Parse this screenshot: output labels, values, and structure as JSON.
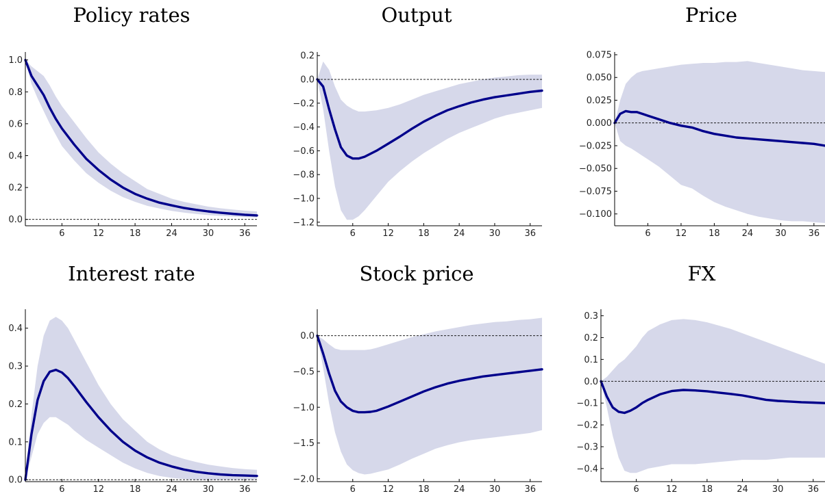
{
  "colors": {
    "line": "#00008b",
    "band": "#d6d8ea"
  },
  "chart_data": [
    {
      "type": "line",
      "title": "Policy rates",
      "xlim": [
        0,
        38
      ],
      "xticks": [
        6,
        12,
        18,
        24,
        30,
        36
      ],
      "xtick_labels": [
        "6",
        "12",
        "18",
        "24",
        "30",
        "36"
      ],
      "ylim": [
        -0.04,
        1.05
      ],
      "yticks": [
        0.0,
        0.2,
        0.4,
        0.6,
        0.8,
        1.0
      ],
      "ytick_labels": [
        "0.0",
        "0.2",
        "0.4",
        "0.6",
        "0.8",
        "1.0"
      ],
      "x": [
        0,
        1,
        2,
        3,
        4,
        5,
        6,
        8,
        10,
        12,
        14,
        16,
        18,
        20,
        22,
        24,
        26,
        28,
        30,
        32,
        34,
        36,
        38
      ],
      "series": [
        {
          "values": [
            1.0,
            0.9,
            0.84,
            0.78,
            0.7,
            0.63,
            0.57,
            0.47,
            0.38,
            0.31,
            0.25,
            0.2,
            0.16,
            0.13,
            0.105,
            0.088,
            0.072,
            0.06,
            0.05,
            0.042,
            0.035,
            0.029,
            0.025
          ]
        }
      ],
      "band_upper": [
        1.0,
        0.96,
        0.93,
        0.9,
        0.84,
        0.77,
        0.71,
        0.61,
        0.51,
        0.42,
        0.35,
        0.29,
        0.24,
        0.19,
        0.16,
        0.13,
        0.11,
        0.095,
        0.08,
        0.07,
        0.062,
        0.055,
        0.05
      ],
      "band_lower": [
        1.0,
        0.85,
        0.76,
        0.68,
        0.6,
        0.53,
        0.46,
        0.37,
        0.29,
        0.23,
        0.18,
        0.14,
        0.11,
        0.085,
        0.068,
        0.053,
        0.043,
        0.034,
        0.027,
        0.022,
        0.018,
        0.014,
        0.012
      ]
    },
    {
      "type": "line",
      "title": "Output",
      "xlim": [
        0,
        38
      ],
      "xticks": [
        6,
        12,
        18,
        24,
        30,
        36
      ],
      "xtick_labels": [
        "6",
        "12",
        "18",
        "24",
        "30",
        "36"
      ],
      "ylim": [
        -1.23,
        0.23
      ],
      "yticks": [
        0.2,
        0.0,
        -0.2,
        -0.4,
        -0.6,
        -0.8,
        -1.0,
        -1.2
      ],
      "ytick_labels": [
        "0.2",
        "0.0",
        "−0.2",
        "−0.4",
        "−0.6",
        "−0.8",
        "−1.0",
        "−1.2"
      ],
      "x": [
        0,
        1,
        2,
        3,
        4,
        5,
        6,
        7,
        8,
        10,
        12,
        14,
        16,
        18,
        20,
        22,
        24,
        26,
        28,
        30,
        32,
        34,
        36,
        38
      ],
      "series": [
        {
          "values": [
            0.0,
            -0.06,
            -0.25,
            -0.42,
            -0.57,
            -0.64,
            -0.665,
            -0.665,
            -0.65,
            -0.6,
            -0.54,
            -0.48,
            -0.415,
            -0.355,
            -0.305,
            -0.26,
            -0.225,
            -0.195,
            -0.17,
            -0.15,
            -0.135,
            -0.12,
            -0.105,
            -0.095
          ]
        }
      ],
      "band_upper": [
        0.0,
        0.15,
        0.08,
        -0.06,
        -0.17,
        -0.22,
        -0.25,
        -0.27,
        -0.27,
        -0.26,
        -0.24,
        -0.21,
        -0.17,
        -0.13,
        -0.1,
        -0.07,
        -0.04,
        -0.02,
        0.0,
        0.015,
        0.025,
        0.035,
        0.04,
        0.04
      ],
      "band_lower": [
        0.0,
        -0.25,
        -0.6,
        -0.9,
        -1.1,
        -1.18,
        -1.18,
        -1.15,
        -1.1,
        -0.98,
        -0.86,
        -0.77,
        -0.69,
        -0.62,
        -0.56,
        -0.5,
        -0.45,
        -0.41,
        -0.37,
        -0.33,
        -0.3,
        -0.28,
        -0.26,
        -0.24
      ]
    },
    {
      "type": "line",
      "title": "Price",
      "xlim": [
        0,
        38
      ],
      "xticks": [
        6,
        12,
        18,
        24,
        30,
        36
      ],
      "xtick_labels": [
        "6",
        "12",
        "18",
        "24",
        "30",
        "36"
      ],
      "ylim": [
        -0.113,
        0.078
      ],
      "yticks": [
        0.075,
        0.05,
        0.025,
        0.0,
        -0.025,
        -0.05,
        -0.075,
        -0.1
      ],
      "ytick_labels": [
        "0.075",
        "0.050",
        "0.025",
        "0.000",
        "−0.025",
        "−0.050",
        "−0.075",
        "−0.100"
      ],
      "x": [
        0,
        1,
        2,
        3,
        4,
        5,
        6,
        8,
        10,
        12,
        14,
        16,
        18,
        20,
        22,
        24,
        26,
        28,
        30,
        32,
        34,
        36,
        38
      ],
      "series": [
        {
          "values": [
            0.0,
            0.01,
            0.013,
            0.012,
            0.012,
            0.01,
            0.008,
            0.004,
            0.0,
            -0.003,
            -0.005,
            -0.009,
            -0.012,
            -0.014,
            -0.016,
            -0.017,
            -0.018,
            -0.019,
            -0.02,
            -0.021,
            -0.022,
            -0.023,
            -0.025
          ]
        }
      ],
      "band_upper": [
        0.0,
        0.025,
        0.043,
        0.05,
        0.055,
        0.057,
        0.058,
        0.06,
        0.062,
        0.064,
        0.065,
        0.066,
        0.066,
        0.067,
        0.067,
        0.068,
        0.066,
        0.064,
        0.062,
        0.06,
        0.058,
        0.057,
        0.056
      ],
      "band_lower": [
        0.0,
        -0.02,
        -0.025,
        -0.028,
        -0.032,
        -0.036,
        -0.04,
        -0.048,
        -0.058,
        -0.068,
        -0.072,
        -0.08,
        -0.087,
        -0.092,
        -0.096,
        -0.1,
        -0.103,
        -0.105,
        -0.107,
        -0.108,
        -0.108,
        -0.109,
        -0.11
      ]
    },
    {
      "type": "line",
      "title": "Interest rate",
      "xlim": [
        0,
        38
      ],
      "xticks": [
        6,
        12,
        18,
        24,
        30,
        36
      ],
      "xtick_labels": [
        "6",
        "12",
        "18",
        "24",
        "30",
        "36"
      ],
      "ylim": [
        -0.005,
        0.45
      ],
      "yticks": [
        0.0,
        0.1,
        0.2,
        0.3,
        0.4
      ],
      "ytick_labels": [
        "0.0",
        "0.1",
        "0.2",
        "0.3",
        "0.4"
      ],
      "x": [
        0,
        1,
        2,
        3,
        4,
        5,
        6,
        7,
        8,
        10,
        12,
        14,
        16,
        18,
        20,
        22,
        24,
        26,
        28,
        30,
        32,
        34,
        36,
        38
      ],
      "series": [
        {
          "values": [
            0.0,
            0.12,
            0.21,
            0.26,
            0.285,
            0.29,
            0.283,
            0.268,
            0.248,
            0.205,
            0.165,
            0.13,
            0.1,
            0.077,
            0.059,
            0.045,
            0.035,
            0.027,
            0.021,
            0.017,
            0.014,
            0.012,
            0.011,
            0.01
          ]
        }
      ],
      "band_upper": [
        0.0,
        0.17,
        0.3,
        0.38,
        0.42,
        0.43,
        0.42,
        0.4,
        0.37,
        0.31,
        0.25,
        0.2,
        0.16,
        0.13,
        0.1,
        0.08,
        0.065,
        0.055,
        0.047,
        0.04,
        0.035,
        0.031,
        0.028,
        0.026
      ],
      "band_lower": [
        0.0,
        0.06,
        0.12,
        0.15,
        0.165,
        0.165,
        0.155,
        0.145,
        0.13,
        0.105,
        0.085,
        0.065,
        0.045,
        0.03,
        0.018,
        0.01,
        0.005,
        0.002,
        0.0,
        0.0,
        0.0,
        0.0,
        0.0,
        0.0
      ]
    },
    {
      "type": "line",
      "title": "Stock price",
      "xlim": [
        0,
        38
      ],
      "xticks": [
        6,
        12,
        18,
        24,
        30,
        36
      ],
      "xtick_labels": [
        "6",
        "12",
        "18",
        "24",
        "30",
        "36"
      ],
      "ylim": [
        -2.04,
        0.37
      ],
      "yticks": [
        0.0,
        -0.5,
        -1.0,
        -1.5,
        -2.0
      ],
      "ytick_labels": [
        "0.0",
        "−0.5",
        "−1.0",
        "−1.5",
        "−2.0"
      ],
      "x": [
        0,
        1,
        2,
        3,
        4,
        5,
        6,
        7,
        8,
        9,
        10,
        12,
        14,
        16,
        18,
        20,
        22,
        24,
        26,
        28,
        30,
        32,
        34,
        36,
        38
      ],
      "series": [
        {
          "values": [
            0.0,
            -0.25,
            -0.53,
            -0.77,
            -0.92,
            -1.0,
            -1.05,
            -1.07,
            -1.07,
            -1.065,
            -1.05,
            -0.99,
            -0.92,
            -0.85,
            -0.78,
            -0.72,
            -0.67,
            -0.63,
            -0.6,
            -0.57,
            -0.55,
            -0.53,
            -0.51,
            -0.49,
            -0.47
          ]
        }
      ],
      "band_upper": [
        0.0,
        -0.05,
        -0.12,
        -0.18,
        -0.2,
        -0.2,
        -0.2,
        -0.2,
        -0.2,
        -0.19,
        -0.17,
        -0.12,
        -0.07,
        -0.02,
        0.02,
        0.06,
        0.09,
        0.12,
        0.15,
        0.17,
        0.19,
        0.2,
        0.22,
        0.23,
        0.25
      ],
      "band_lower": [
        0.0,
        -0.45,
        -0.95,
        -1.35,
        -1.62,
        -1.8,
        -1.88,
        -1.92,
        -1.94,
        -1.93,
        -1.91,
        -1.87,
        -1.8,
        -1.72,
        -1.65,
        -1.58,
        -1.53,
        -1.49,
        -1.46,
        -1.44,
        -1.42,
        -1.4,
        -1.38,
        -1.36,
        -1.32
      ]
    },
    {
      "type": "line",
      "title": "FX",
      "xlim": [
        0,
        38
      ],
      "xticks": [
        6,
        12,
        18,
        24,
        30,
        36
      ],
      "xtick_labels": [
        "6",
        "12",
        "18",
        "24",
        "30",
        "36"
      ],
      "ylim": [
        -0.46,
        0.33
      ],
      "yticks": [
        0.3,
        0.2,
        0.1,
        0.0,
        -0.1,
        -0.2,
        -0.3,
        -0.4
      ],
      "ytick_labels": [
        "0.3",
        "0.2",
        "0.1",
        "0.0",
        "−0.1",
        "−0.2",
        "−0.3",
        "−0.4"
      ],
      "x": [
        0,
        1,
        2,
        3,
        4,
        5,
        6,
        7,
        8,
        10,
        12,
        14,
        16,
        18,
        20,
        22,
        24,
        26,
        28,
        30,
        32,
        34,
        36,
        38
      ],
      "series": [
        {
          "values": [
            0.0,
            -0.07,
            -0.12,
            -0.14,
            -0.145,
            -0.135,
            -0.12,
            -0.1,
            -0.085,
            -0.06,
            -0.045,
            -0.04,
            -0.042,
            -0.046,
            -0.052,
            -0.058,
            -0.065,
            -0.075,
            -0.085,
            -0.09,
            -0.093,
            -0.096,
            -0.098,
            -0.1
          ]
        }
      ],
      "band_upper": [
        0.0,
        0.02,
        0.05,
        0.08,
        0.1,
        0.13,
        0.16,
        0.2,
        0.23,
        0.26,
        0.28,
        0.285,
        0.28,
        0.27,
        0.255,
        0.24,
        0.22,
        0.2,
        0.18,
        0.16,
        0.14,
        0.12,
        0.1,
        0.08
      ],
      "band_lower": [
        0.0,
        -0.12,
        -0.25,
        -0.35,
        -0.41,
        -0.42,
        -0.42,
        -0.41,
        -0.4,
        -0.39,
        -0.38,
        -0.38,
        -0.38,
        -0.375,
        -0.37,
        -0.365,
        -0.36,
        -0.36,
        -0.36,
        -0.355,
        -0.35,
        -0.35,
        -0.35,
        -0.35
      ]
    }
  ]
}
